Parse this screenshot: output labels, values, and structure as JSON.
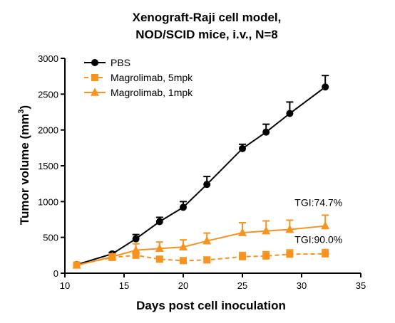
{
  "chart_data": {
    "type": "line",
    "title_lines": [
      "Xenograft-Raji cell model,",
      "NOD/SCID mice, i.v., N=8"
    ],
    "xlabel": "Days post cell inoculation",
    "ylabel": "Tumor volume (mm",
    "ylabel_sup": "3",
    "ylabel_close": ")",
    "xlim": [
      10,
      35
    ],
    "ylim": [
      0,
      3000
    ],
    "xticks": [
      10,
      15,
      20,
      25,
      30,
      35
    ],
    "yticks": [
      0,
      500,
      1000,
      1500,
      2000,
      2500,
      3000
    ],
    "legend_position": "top-left",
    "grid": false,
    "series": [
      {
        "name": "PBS",
        "color": "#000000",
        "marker": "circle",
        "dashed": false,
        "x": [
          11,
          14,
          16,
          18,
          20,
          22,
          25,
          27,
          29,
          32
        ],
        "y": [
          120,
          270,
          480,
          720,
          920,
          1240,
          1740,
          1970,
          2230,
          2600
        ],
        "err": [
          20,
          20,
          60,
          60,
          80,
          110,
          60,
          110,
          160,
          160
        ]
      },
      {
        "name": "Magrolimab, 5mpk",
        "color": "#F7931E",
        "marker": "square",
        "dashed": true,
        "x": [
          11,
          14,
          16,
          18,
          20,
          22,
          25,
          27,
          29,
          32
        ],
        "y": [
          115,
          220,
          250,
          195,
          175,
          185,
          230,
          240,
          265,
          270
        ],
        "err": [
          20,
          25,
          50,
          40,
          40,
          40,
          60,
          60,
          60,
          60
        ]
      },
      {
        "name": "Magrolimab, 1mpk",
        "color": "#F7931E",
        "marker": "triangle",
        "dashed": false,
        "x": [
          11,
          14,
          16,
          18,
          20,
          22,
          25,
          27,
          29,
          32
        ],
        "y": [
          110,
          230,
          320,
          345,
          365,
          450,
          565,
          590,
          610,
          660
        ],
        "err": [
          30,
          40,
          90,
          90,
          100,
          110,
          140,
          140,
          130,
          150
        ]
      }
    ],
    "annotations": [
      {
        "text": "TGI:74.7%",
        "x": 32,
        "y": 940
      },
      {
        "text": "TGI:90.0%",
        "x": 32,
        "y": 420
      }
    ]
  }
}
